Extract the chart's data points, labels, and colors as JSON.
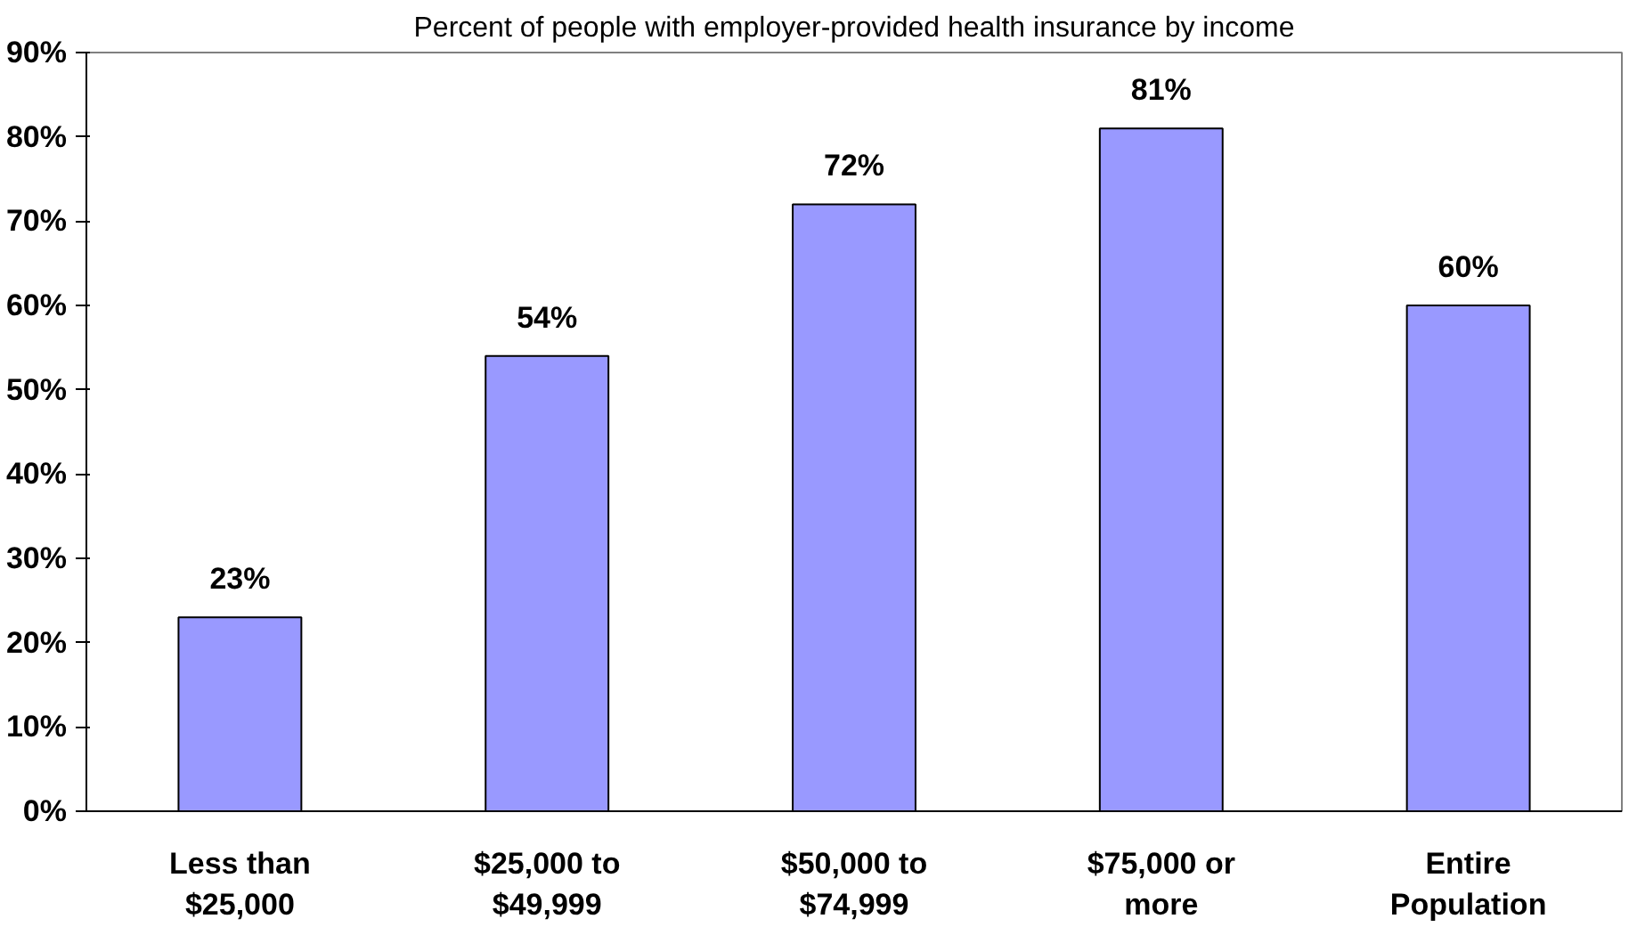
{
  "chart_data": {
    "type": "bar",
    "title": "Percent of people with employer-provided health insurance by income",
    "categories": [
      "Less than\n$25,000",
      "$25,000 to\n$49,999",
      "$50,000 to\n$74,999",
      "$75,000 or\nmore",
      "Entire\nPopulation"
    ],
    "values": [
      23,
      54,
      72,
      81,
      60
    ],
    "value_labels": [
      "23%",
      "54%",
      "72%",
      "81%",
      "60%"
    ],
    "color": "#9999ff",
    "ylim": [
      0,
      90
    ],
    "yticks": [
      {
        "value": 0,
        "label": "0%"
      },
      {
        "value": 10,
        "label": "10%"
      },
      {
        "value": 20,
        "label": "20%"
      },
      {
        "value": 30,
        "label": "30%"
      },
      {
        "value": 40,
        "label": "40%"
      },
      {
        "value": 50,
        "label": "50%"
      },
      {
        "value": 60,
        "label": "60%"
      },
      {
        "value": 70,
        "label": "70%"
      },
      {
        "value": 80,
        "label": "80%"
      },
      {
        "value": 90,
        "label": "90%"
      }
    ],
    "grid": false
  }
}
